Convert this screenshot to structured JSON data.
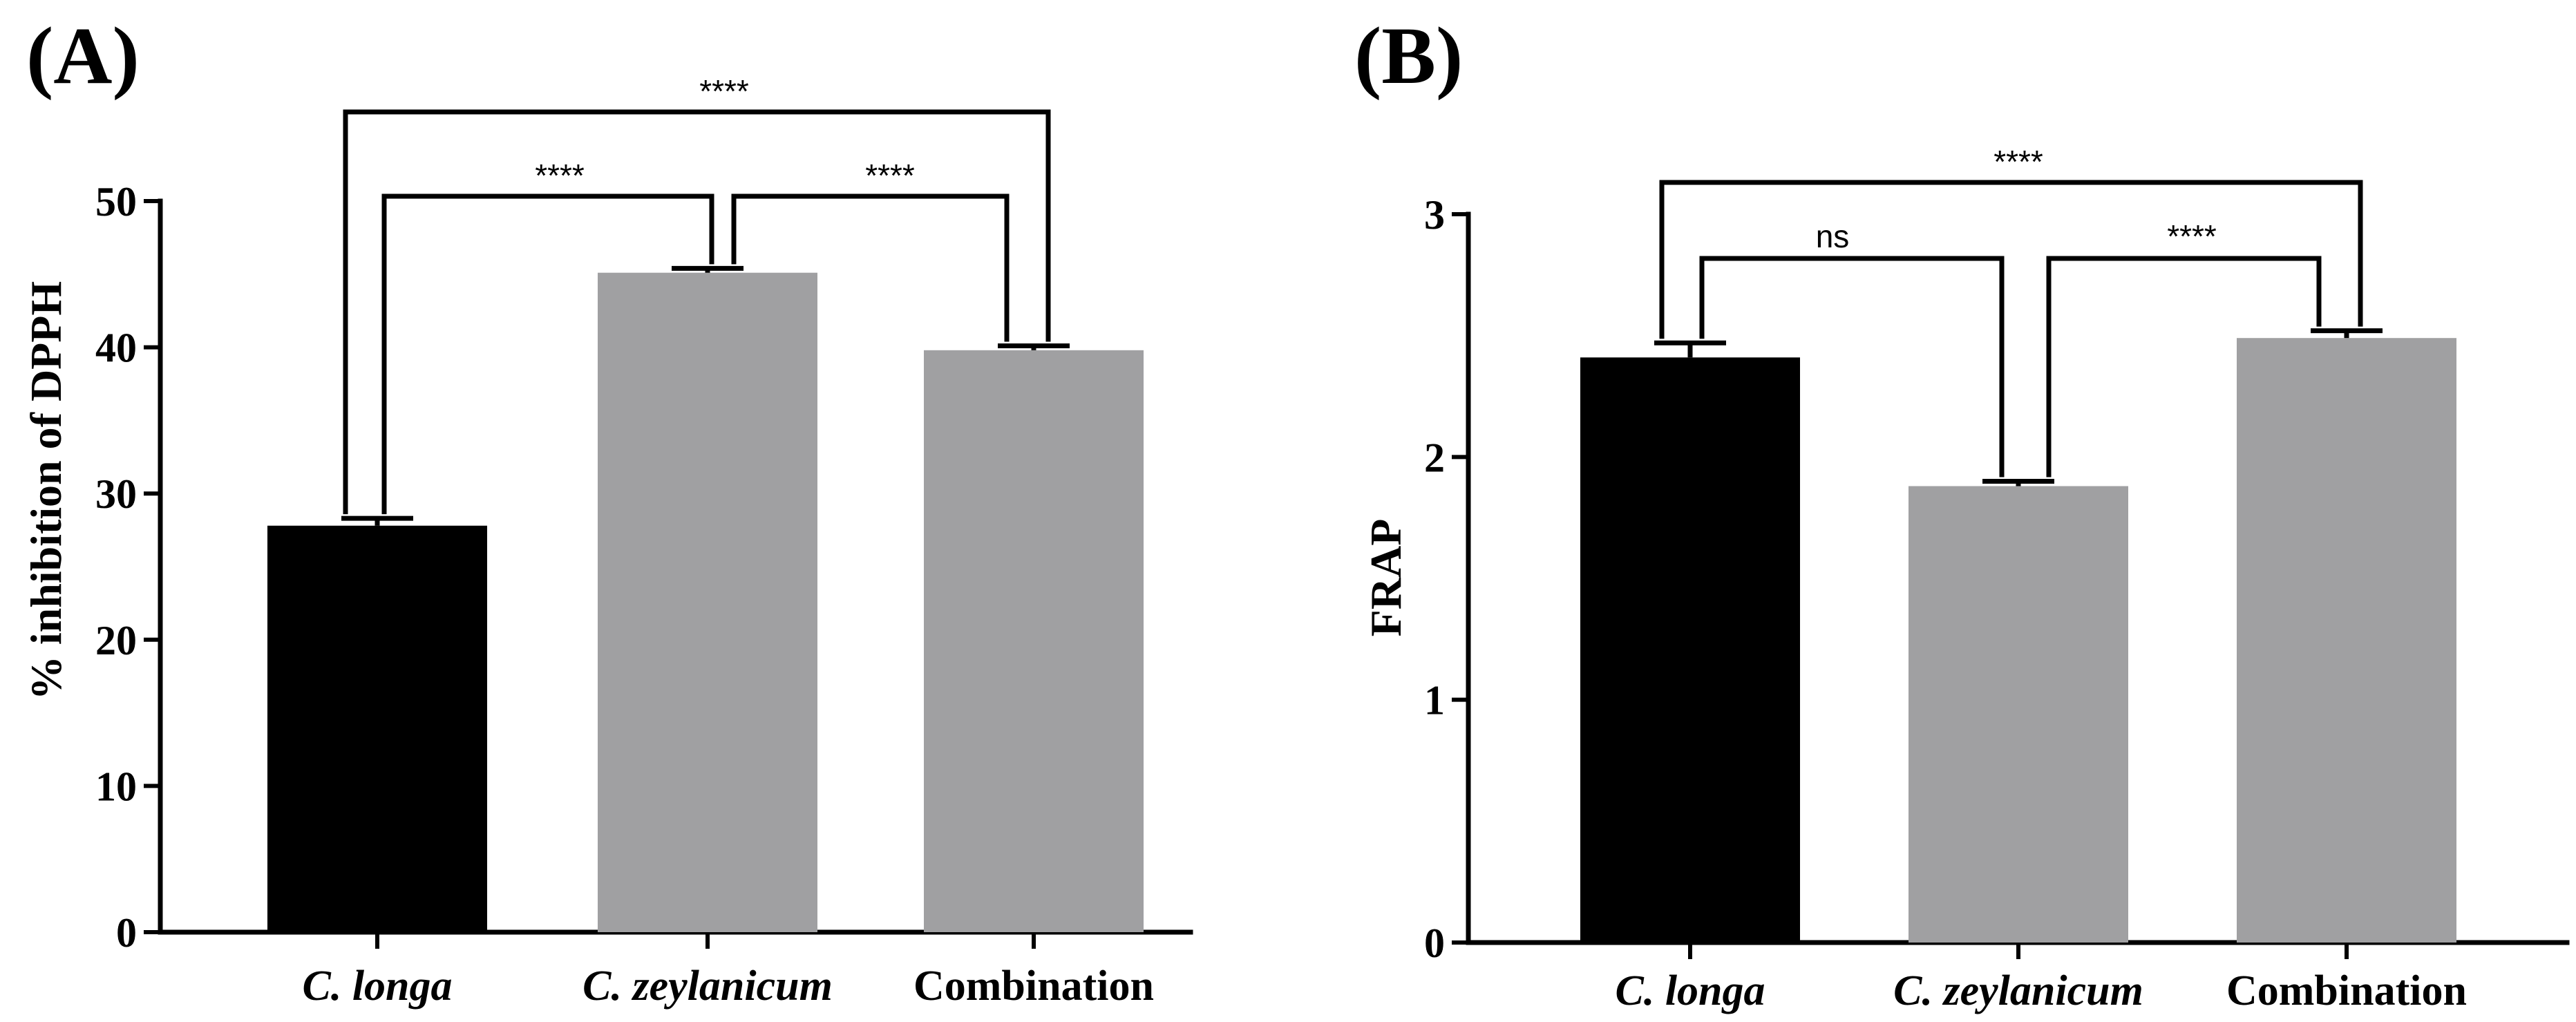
{
  "chart_data": [
    {
      "panel": "(A)",
      "type": "bar",
      "ylabel": "% inhibition of DPPH",
      "xlabel": "",
      "ylim": [
        0,
        50
      ],
      "yticks": [
        0,
        10,
        20,
        30,
        40,
        50
      ],
      "categories": [
        {
          "label": "C. longa",
          "italic": true
        },
        {
          "label": "C. zeylanicum",
          "italic": true
        },
        {
          "label": "Combination",
          "italic": false
        }
      ],
      "values": [
        27.8,
        45.1,
        39.8
      ],
      "errors": [
        0.5,
        0.3,
        0.3
      ],
      "colors": [
        "#000000",
        "#a0a0a2",
        "#a0a0a2"
      ],
      "comparisons": [
        {
          "from": 0,
          "to": 2,
          "label": "****"
        },
        {
          "from": 0,
          "to": 1,
          "label": "****"
        },
        {
          "from": 1,
          "to": 2,
          "label": "****"
        }
      ]
    },
    {
      "panel": "(B)",
      "type": "bar",
      "ylabel": "FRAP",
      "xlabel": "",
      "ylim": [
        0,
        3
      ],
      "yticks": [
        0,
        1,
        2,
        3
      ],
      "categories": [
        {
          "label": "C. longa",
          "italic": true
        },
        {
          "label": "C. zeylanicum",
          "italic": true
        },
        {
          "label": "Combination",
          "italic": false
        }
      ],
      "values": [
        2.41,
        1.88,
        2.49
      ],
      "errors": [
        0.06,
        0.02,
        0.03
      ],
      "colors": [
        "#000000",
        "#a0a0a2",
        "#a0a0a2"
      ],
      "comparisons": [
        {
          "from": 0,
          "to": 2,
          "label": "****"
        },
        {
          "from": 0,
          "to": 1,
          "label": "ns"
        },
        {
          "from": 1,
          "to": 2,
          "label": "****"
        }
      ]
    }
  ]
}
